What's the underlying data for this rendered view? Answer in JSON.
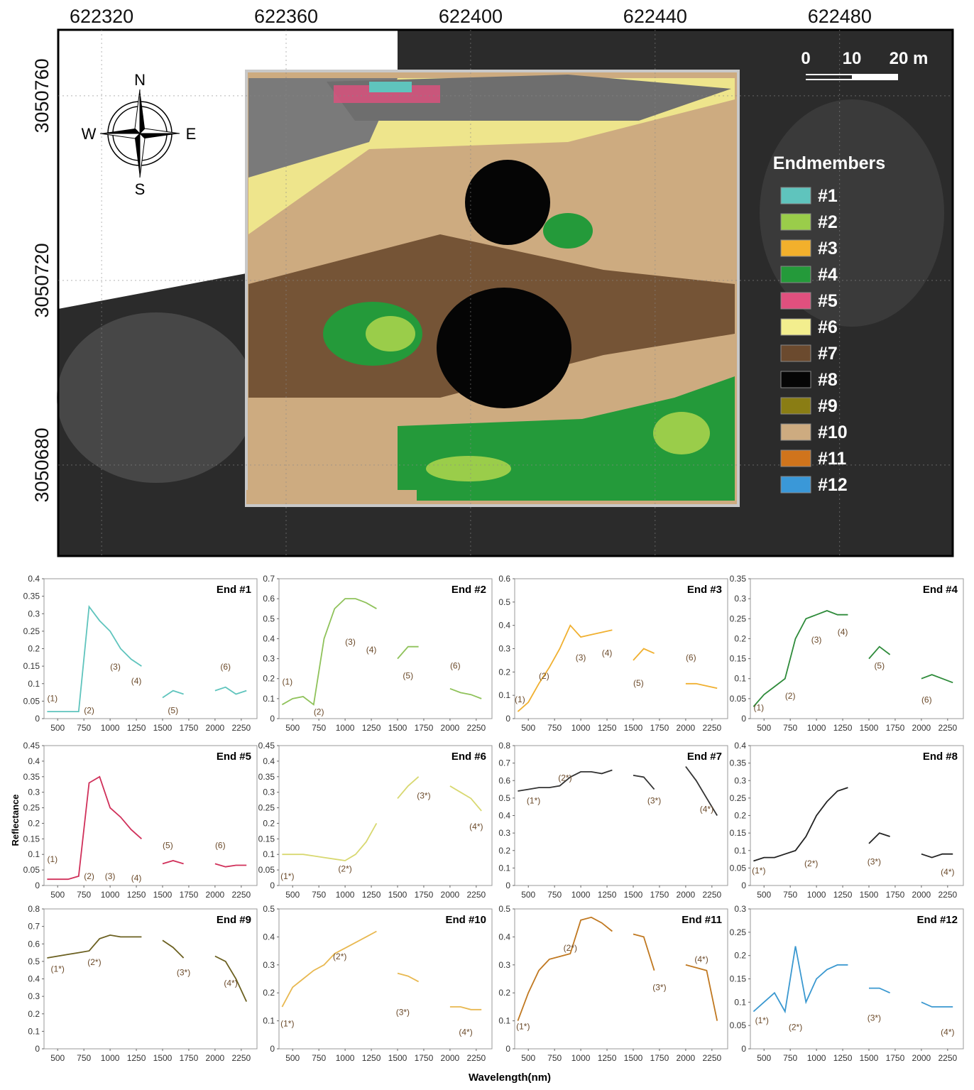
{
  "map": {
    "xticks": [
      622320,
      622360,
      622400,
      622440,
      622480
    ],
    "yticks": [
      3050760,
      3050720,
      3050680
    ],
    "xlim": [
      622310.6,
      622504.5
    ],
    "ylim": [
      3050660.3,
      3050774.3
    ],
    "compass": {
      "north": "N",
      "south": "S",
      "east": "E",
      "west": "W"
    },
    "scale_bar": [
      "0",
      "10",
      "20 m"
    ],
    "legend": {
      "title": "Endmembers",
      "entries": [
        {
          "label": "#1",
          "color": "#5fc4bd"
        },
        {
          "label": "#2",
          "color": "#9acd4a"
        },
        {
          "label": "#3",
          "color": "#f2b02c"
        },
        {
          "label": "#4",
          "color": "#249a3a"
        },
        {
          "label": "#5",
          "color": "#e0507e"
        },
        {
          "label": "#6",
          "color": "#f3ee8e"
        },
        {
          "label": "#7",
          "color": "#6b4a2e"
        },
        {
          "label": "#8",
          "color": "#050505"
        },
        {
          "label": "#9",
          "color": "#8a7d14"
        },
        {
          "label": "#10",
          "color": "#cdab80"
        },
        {
          "label": "#11",
          "color": "#d0741c"
        },
        {
          "label": "#12",
          "color": "#3a98d8"
        }
      ]
    }
  },
  "shared_axis_labels": {
    "y": "Reflectance",
    "x": "Wavelength(nm)"
  },
  "chart_data": [
    {
      "type": "line",
      "title": "End #1",
      "x": [
        400,
        500,
        600,
        700,
        800,
        900,
        1000,
        1100,
        1200,
        1300,
        1400,
        1500,
        1600,
        1700,
        1800,
        1900,
        2000,
        2100,
        2200,
        2300
      ],
      "xlim": [
        370,
        2400
      ],
      "xticks": [
        500,
        750,
        1000,
        1250,
        1500,
        1750,
        2000,
        2250
      ],
      "ylim": [
        0,
        0.4
      ],
      "yticks": [
        0,
        0.05,
        0.1,
        0.15,
        0.2,
        0.25,
        0.3,
        0.35,
        0.4
      ],
      "series": [
        {
          "color": "#5fc4bd",
          "values": [
            0.02,
            0.02,
            0.02,
            0.02,
            0.32,
            0.28,
            0.25,
            0.2,
            0.17,
            0.15,
            null,
            0.06,
            0.08,
            0.07,
            null,
            null,
            0.08,
            0.09,
            0.07,
            0.08
          ]
        }
      ],
      "annotations": [
        "(1)",
        "(2)",
        "(3)",
        "(4)",
        "(5)",
        "(6)"
      ]
    },
    {
      "type": "line",
      "title": "End #2",
      "x": [
        400,
        500,
        600,
        700,
        800,
        900,
        1000,
        1100,
        1200,
        1300,
        1400,
        1500,
        1600,
        1700,
        1800,
        1900,
        2000,
        2100,
        2200,
        2300
      ],
      "xlim": [
        370,
        2400
      ],
      "xticks": [
        500,
        750,
        1000,
        1250,
        1500,
        1750,
        2000,
        2250
      ],
      "ylim": [
        0,
        0.7
      ],
      "yticks": [
        0,
        0.1,
        0.2,
        0.3,
        0.4,
        0.5,
        0.6,
        0.7
      ],
      "series": [
        {
          "color": "#8fc25a",
          "values": [
            0.07,
            0.1,
            0.11,
            0.07,
            0.4,
            0.55,
            0.6,
            0.6,
            0.58,
            0.55,
            null,
            0.3,
            0.36,
            0.36,
            null,
            null,
            0.15,
            0.13,
            0.12,
            0.1
          ]
        }
      ],
      "annotations": [
        "(1)",
        "(2)",
        "(3)",
        "(4)",
        "(5)",
        "(6)"
      ]
    },
    {
      "type": "line",
      "title": "End #3",
      "x": [
        400,
        500,
        600,
        700,
        800,
        900,
        1000,
        1100,
        1200,
        1300,
        1400,
        1500,
        1600,
        1700,
        1800,
        1900,
        2000,
        2100,
        2200,
        2300
      ],
      "xlim": [
        370,
        2400
      ],
      "xticks": [
        500,
        750,
        1000,
        1250,
        1500,
        1750,
        2000,
        2250
      ],
      "ylim": [
        0,
        0.6
      ],
      "yticks": [
        0,
        0.1,
        0.2,
        0.3,
        0.4,
        0.5,
        0.6
      ],
      "series": [
        {
          "color": "#f0b030",
          "values": [
            0.03,
            0.07,
            0.15,
            0.22,
            0.3,
            0.4,
            0.35,
            0.36,
            0.37,
            0.38,
            null,
            0.25,
            0.3,
            0.28,
            null,
            null,
            0.15,
            0.15,
            0.14,
            0.13
          ]
        }
      ],
      "annotations": [
        "(1)",
        "(2)",
        "(3)",
        "(4)",
        "(5)",
        "(6)"
      ]
    },
    {
      "type": "line",
      "title": "End #4",
      "x": [
        400,
        500,
        600,
        700,
        800,
        900,
        1000,
        1100,
        1200,
        1300,
        1400,
        1500,
        1600,
        1700,
        1800,
        1900,
        2000,
        2100,
        2200,
        2300
      ],
      "xlim": [
        370,
        2400
      ],
      "xticks": [
        500,
        750,
        1000,
        1250,
        1500,
        1750,
        2000,
        2250
      ],
      "ylim": [
        0,
        0.35
      ],
      "yticks": [
        0,
        0.05,
        0.1,
        0.15,
        0.2,
        0.25,
        0.3,
        0.35
      ],
      "series": [
        {
          "color": "#2e8b3a",
          "values": [
            0.03,
            0.06,
            0.08,
            0.1,
            0.2,
            0.25,
            0.26,
            0.27,
            0.26,
            0.26,
            null,
            0.15,
            0.18,
            0.16,
            null,
            null,
            0.1,
            0.11,
            0.1,
            0.09
          ]
        }
      ],
      "annotations": [
        "(1)",
        "(2)",
        "(3)",
        "(4)",
        "(5)",
        "(6)"
      ]
    },
    {
      "type": "line",
      "title": "End #5",
      "x": [
        400,
        500,
        600,
        700,
        800,
        900,
        1000,
        1100,
        1200,
        1300,
        1400,
        1500,
        1600,
        1700,
        1800,
        1900,
        2000,
        2100,
        2200,
        2300
      ],
      "xlim": [
        370,
        2400
      ],
      "xticks": [
        500,
        750,
        1000,
        1250,
        1500,
        1750,
        2000,
        2250
      ],
      "ylim": [
        0,
        0.45
      ],
      "yticks": [
        0,
        0.05,
        0.1,
        0.15,
        0.2,
        0.25,
        0.3,
        0.35,
        0.4,
        0.45
      ],
      "series": [
        {
          "color": "#d0305a",
          "values": [
            0.02,
            0.02,
            0.02,
            0.03,
            0.33,
            0.35,
            0.25,
            0.22,
            0.18,
            0.15,
            null,
            0.07,
            0.08,
            0.07,
            null,
            null,
            0.07,
            0.06,
            0.065,
            0.065
          ]
        }
      ],
      "annotations": [
        "(1)",
        "(2)",
        "(3)",
        "(4)",
        "(5)",
        "(6)"
      ]
    },
    {
      "type": "line",
      "title": "End #6",
      "x": [
        400,
        500,
        600,
        700,
        800,
        900,
        1000,
        1100,
        1200,
        1300,
        1400,
        1500,
        1600,
        1700,
        1800,
        1900,
        2000,
        2100,
        2200,
        2300
      ],
      "xlim": [
        370,
        2400
      ],
      "xticks": [
        500,
        750,
        1000,
        1250,
        1500,
        1750,
        2000,
        2250
      ],
      "ylim": [
        0,
        0.45
      ],
      "yticks": [
        0,
        0.05,
        0.1,
        0.15,
        0.2,
        0.25,
        0.3,
        0.35,
        0.4,
        0.45
      ],
      "series": [
        {
          "color": "#d8d870",
          "values": [
            0.1,
            0.1,
            0.1,
            0.095,
            0.09,
            0.085,
            0.08,
            0.1,
            0.14,
            0.2,
            null,
            0.28,
            0.32,
            0.35,
            null,
            null,
            0.32,
            0.3,
            0.28,
            0.24
          ]
        }
      ],
      "annotations": [
        "(1*)",
        "(2*)",
        "(3*)",
        "(4*)"
      ]
    },
    {
      "type": "line",
      "title": "End #7",
      "x": [
        400,
        500,
        600,
        700,
        800,
        900,
        1000,
        1100,
        1200,
        1300,
        1400,
        1500,
        1600,
        1700,
        1800,
        1900,
        2000,
        2100,
        2200,
        2300
      ],
      "xlim": [
        370,
        2400
      ],
      "xticks": [
        500,
        750,
        1000,
        1250,
        1500,
        1750,
        2000,
        2250
      ],
      "ylim": [
        0,
        0.8
      ],
      "yticks": [
        0,
        0.1,
        0.2,
        0.3,
        0.4,
        0.5,
        0.6,
        0.7,
        0.8
      ],
      "series": [
        {
          "color": "#333333",
          "values": [
            0.54,
            0.55,
            0.56,
            0.56,
            0.57,
            0.62,
            0.65,
            0.65,
            0.64,
            0.66,
            null,
            0.63,
            0.62,
            0.55,
            null,
            null,
            0.68,
            0.6,
            0.5,
            0.4
          ]
        }
      ],
      "annotations": [
        "(1*)",
        "(2*)",
        "(3*)",
        "(4*)"
      ]
    },
    {
      "type": "line",
      "title": "End #8",
      "x": [
        400,
        500,
        600,
        700,
        800,
        900,
        1000,
        1100,
        1200,
        1300,
        1400,
        1500,
        1600,
        1700,
        1800,
        1900,
        2000,
        2100,
        2200,
        2300
      ],
      "xlim": [
        370,
        2400
      ],
      "xticks": [
        500,
        750,
        1000,
        1250,
        1500,
        1750,
        2000,
        2250
      ],
      "ylim": [
        0,
        0.4
      ],
      "yticks": [
        0,
        0.05,
        0.1,
        0.15,
        0.2,
        0.25,
        0.3,
        0.35,
        0.4
      ],
      "series": [
        {
          "color": "#222222",
          "values": [
            0.07,
            0.08,
            0.08,
            0.09,
            0.1,
            0.14,
            0.2,
            0.24,
            0.27,
            0.28,
            null,
            0.12,
            0.15,
            0.14,
            null,
            null,
            0.09,
            0.08,
            0.09,
            0.09
          ]
        }
      ],
      "annotations": [
        "(1*)",
        "(2*)",
        "(3*)",
        "(4*)"
      ]
    },
    {
      "type": "line",
      "title": "End #9",
      "x": [
        400,
        500,
        600,
        700,
        800,
        900,
        1000,
        1100,
        1200,
        1300,
        1400,
        1500,
        1600,
        1700,
        1800,
        1900,
        2000,
        2100,
        2200,
        2300
      ],
      "xlim": [
        370,
        2400
      ],
      "xticks": [
        500,
        750,
        1000,
        1250,
        1500,
        1750,
        2000,
        2250
      ],
      "ylim": [
        0,
        0.8
      ],
      "yticks": [
        0,
        0.1,
        0.2,
        0.3,
        0.4,
        0.5,
        0.6,
        0.7,
        0.8
      ],
      "series": [
        {
          "color": "#6b6020",
          "values": [
            0.52,
            0.53,
            0.54,
            0.55,
            0.56,
            0.63,
            0.65,
            0.64,
            0.64,
            0.64,
            null,
            0.62,
            0.58,
            0.52,
            null,
            null,
            0.53,
            0.5,
            0.4,
            0.27
          ]
        }
      ],
      "annotations": [
        "(1*)",
        "(2*)",
        "(3*)",
        "(4*)"
      ]
    },
    {
      "type": "line",
      "title": "End #10",
      "x": [
        400,
        500,
        600,
        700,
        800,
        900,
        1000,
        1100,
        1200,
        1300,
        1400,
        1500,
        1600,
        1700,
        1800,
        1900,
        2000,
        2100,
        2200,
        2300
      ],
      "xlim": [
        370,
        2400
      ],
      "xticks": [
        500,
        750,
        1000,
        1250,
        1500,
        1750,
        2000,
        2250
      ],
      "ylim": [
        0,
        0.5
      ],
      "yticks": [
        0,
        0.1,
        0.2,
        0.3,
        0.4,
        0.5
      ],
      "series": [
        {
          "color": "#e8b850",
          "values": [
            0.15,
            0.22,
            0.25,
            0.28,
            0.3,
            0.34,
            0.36,
            0.38,
            0.4,
            0.42,
            null,
            0.27,
            0.26,
            0.24,
            null,
            null,
            0.15,
            0.15,
            0.14,
            0.14
          ]
        }
      ],
      "annotations": [
        "(1*)",
        "(2*)",
        "(3*)",
        "(4*)"
      ]
    },
    {
      "type": "line",
      "title": "End #11",
      "x": [
        400,
        500,
        600,
        700,
        800,
        900,
        1000,
        1100,
        1200,
        1300,
        1400,
        1500,
        1600,
        1700,
        1800,
        1900,
        2000,
        2100,
        2200,
        2300
      ],
      "xlim": [
        370,
        2400
      ],
      "xticks": [
        500,
        750,
        1000,
        1250,
        1500,
        1750,
        2000,
        2250
      ],
      "ylim": [
        0,
        0.5
      ],
      "yticks": [
        0,
        0.1,
        0.2,
        0.3,
        0.4,
        0.5
      ],
      "series": [
        {
          "color": "#c07820",
          "values": [
            0.1,
            0.2,
            0.28,
            0.32,
            0.33,
            0.34,
            0.46,
            0.47,
            0.45,
            0.42,
            null,
            0.41,
            0.4,
            0.28,
            null,
            null,
            0.3,
            0.29,
            0.28,
            0.1
          ]
        }
      ],
      "annotations": [
        "(1*)",
        "(2*)",
        "(3*)",
        "(4*)"
      ]
    },
    {
      "type": "line",
      "title": "End #12",
      "x": [
        400,
        500,
        600,
        700,
        800,
        900,
        1000,
        1100,
        1200,
        1300,
        1400,
        1500,
        1600,
        1700,
        1800,
        1900,
        2000,
        2100,
        2200,
        2300
      ],
      "xlim": [
        370,
        2400
      ],
      "xticks": [
        500,
        750,
        1000,
        1250,
        1500,
        1750,
        2000,
        2250
      ],
      "ylim": [
        0,
        0.3
      ],
      "yticks": [
        0,
        0.05,
        0.1,
        0.15,
        0.2,
        0.25,
        0.3
      ],
      "series": [
        {
          "color": "#3a98d0",
          "values": [
            0.08,
            0.1,
            0.12,
            0.08,
            0.22,
            0.1,
            0.15,
            0.17,
            0.18,
            0.18,
            null,
            0.13,
            0.13,
            0.12,
            null,
            null,
            0.1,
            0.09,
            0.09,
            0.09
          ]
        }
      ],
      "annotations": [
        "(1*)",
        "(2*)",
        "(3*)",
        "(4*)"
      ]
    }
  ]
}
